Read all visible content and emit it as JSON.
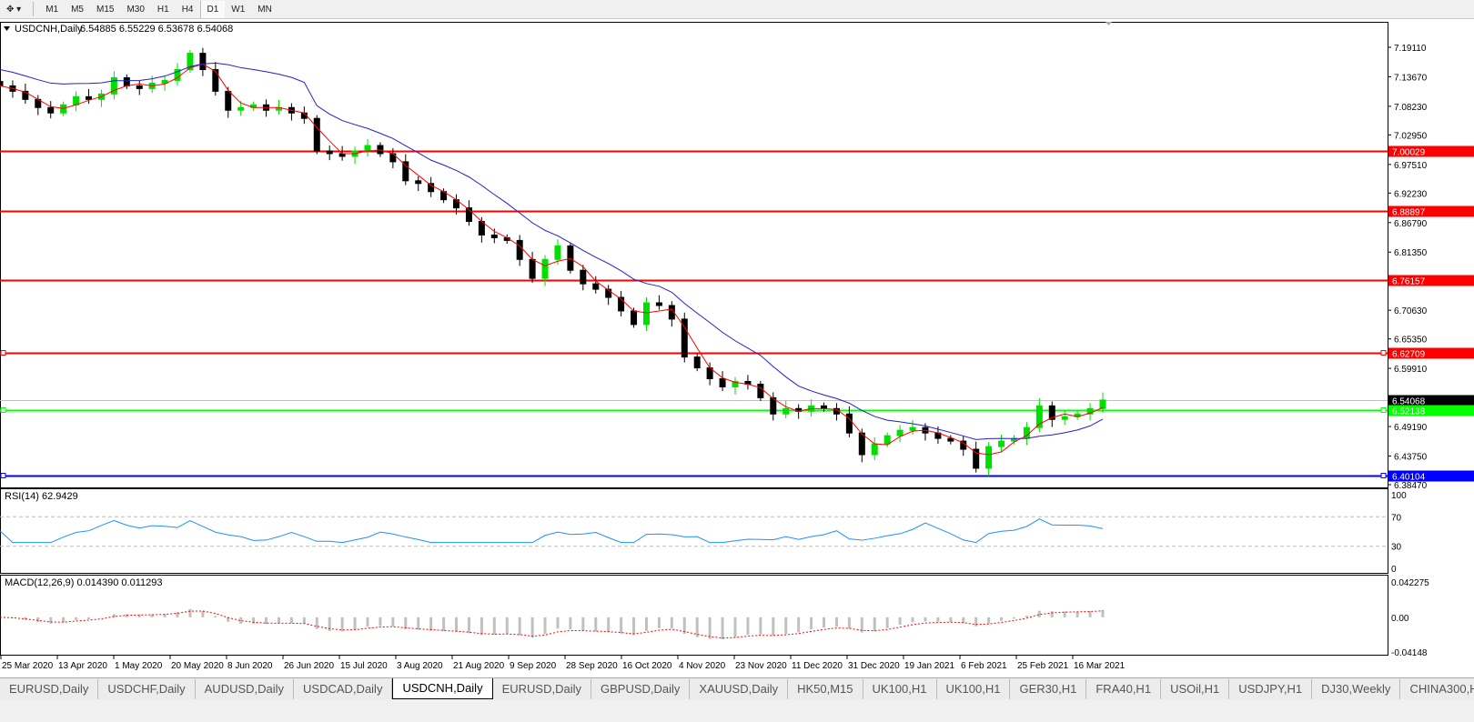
{
  "toolbar": {
    "timeframes": [
      "M1",
      "M5",
      "M15",
      "M30",
      "H1",
      "H4",
      "D1",
      "W1",
      "MN"
    ],
    "active": "D1"
  },
  "header": {
    "symbol": "USDCNH,Daily",
    "ohlc": "6.54885 6.55229 6.53678 6.54068"
  },
  "rsi_label": "RSI(14) 62.9429",
  "macd_label": "MACD(12,26,9) 0.014390 0.011293",
  "tabs": [
    "EURUSD,Daily",
    "USDCHF,Daily",
    "AUDUSD,Daily",
    "USDCAD,Daily",
    "USDCNH,Daily",
    "EURUSD,Daily",
    "GBPUSD,Daily",
    "XAUUSD,Daily",
    "HK50,M15",
    "UK100,H1",
    "UK100,H1",
    "GER30,H1",
    "FRA40,H1",
    "USOil,H1",
    "USDJPY,H1",
    "DJ30,Weekly",
    "CHINA300,H1"
  ],
  "active_tab": 4,
  "colors": {
    "bull": "#00e000",
    "bear": "#000000",
    "fast_ma": "#ff0000",
    "slow_ma": "#2020d0",
    "rsi": "#1e90ff",
    "macd_hist": "#c0c0c0",
    "macd_signal": "#ff0000"
  },
  "chart_data": {
    "type": "candlestick",
    "symbol": "USDCNH",
    "timeframe": "Daily",
    "x_ticks": [
      "25 Mar 2020",
      "13 Apr 2020",
      "1 May 2020",
      "20 May 2020",
      "8 Jun 2020",
      "26 Jun 2020",
      "15 Jul 2020",
      "3 Aug 2020",
      "21 Aug 2020",
      "9 Sep 2020",
      "28 Sep 2020",
      "16 Oct 2020",
      "4 Nov 2020",
      "23 Nov 2020",
      "11 Dec 2020",
      "31 Dec 2020",
      "19 Jan 2021",
      "6 Feb 2021",
      "25 Feb 2021",
      "16 Mar 2021"
    ],
    "y_ticks": [
      "7.19110",
      "7.13670",
      "7.08230",
      "7.02950",
      "6.97510",
      "6.92230",
      "6.86790",
      "6.81350",
      "6.70630",
      "6.65350",
      "6.59910",
      "6.49190",
      "6.43750",
      "6.38470"
    ],
    "ylim": [
      6.3847,
      7.1911
    ],
    "closes": [
      7.12,
      7.11,
      7.095,
      7.08,
      7.07,
      7.085,
      7.1,
      7.095,
      7.105,
      7.135,
      7.12,
      7.115,
      7.125,
      7.13,
      7.15,
      7.18,
      7.15,
      7.11,
      7.075,
      7.08,
      7.085,
      7.075,
      7.08,
      7.07,
      7.06,
      7.0,
      6.995,
      6.99,
      7.0,
      7.01,
      6.995,
      6.98,
      6.945,
      6.94,
      6.925,
      6.91,
      6.895,
      6.87,
      6.845,
      6.84,
      6.835,
      6.8,
      6.765,
      6.8,
      6.825,
      6.78,
      6.755,
      6.745,
      6.73,
      6.705,
      6.68,
      6.72,
      6.715,
      6.69,
      6.62,
      6.6,
      6.58,
      6.565,
      6.575,
      6.57,
      6.545,
      6.515,
      6.525,
      6.52,
      6.53,
      6.525,
      6.515,
      6.48,
      6.44,
      6.46,
      6.475,
      6.485,
      6.49,
      6.48,
      6.47,
      6.465,
      6.45,
      6.415,
      6.455,
      6.465,
      6.47,
      6.49,
      6.53,
      6.505,
      6.51,
      6.515,
      6.525,
      6.54068
    ],
    "levels": [
      {
        "price": "7.00029",
        "color": "#ff0000"
      },
      {
        "price": "6.88897",
        "color": "#ff0000"
      },
      {
        "price": "6.76157",
        "color": "#ff0000"
      },
      {
        "price": "6.62709",
        "color": "#ff0000"
      },
      {
        "price": "6.54068",
        "color": "#000000",
        "bid": true
      },
      {
        "price": "6.52138",
        "color": "#00ff00"
      },
      {
        "price": "6.40104",
        "color": "#0000ff"
      }
    ],
    "rsi": {
      "ticks": [
        "100",
        "70",
        "30",
        "0"
      ],
      "levels": [
        70,
        30
      ]
    },
    "macd": {
      "ticks": [
        "0.042275",
        "0.00",
        "-0.04148"
      ],
      "ylim": [
        -0.04148,
        0.042275
      ]
    }
  }
}
